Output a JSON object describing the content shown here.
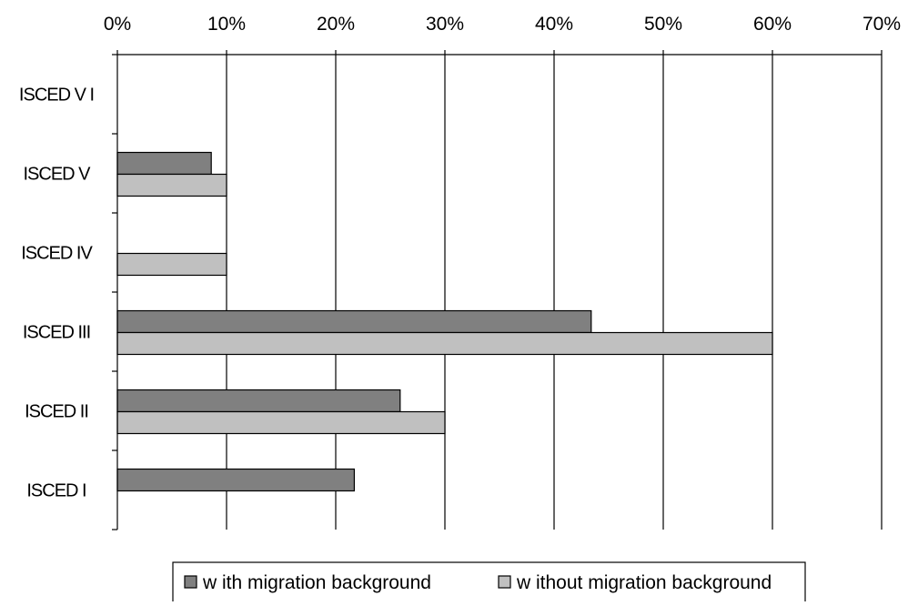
{
  "chart_data": {
    "type": "bar",
    "orientation": "horizontal",
    "categories": [
      "ISCED VI",
      "ISCED V",
      "ISCED IV",
      "ISCED III",
      "ISCED II",
      "ISCED I"
    ],
    "category_labels": [
      "ISCED V I",
      "ISCED V",
      "ISCED IV",
      "ISCED III",
      "ISCED II",
      "ISCED I"
    ],
    "series": [
      {
        "name": "w ith migration background",
        "color": "#808080",
        "values": [
          0,
          8.6,
          0,
          43.4,
          25.9,
          21.7
        ]
      },
      {
        "name": "w ithout migration background",
        "color": "#c0c0c0",
        "values": [
          0,
          10.0,
          10.0,
          60.0,
          30.0,
          0
        ]
      }
    ],
    "xlim": [
      0,
      70
    ],
    "x_ticks": [
      0,
      10,
      20,
      30,
      40,
      50,
      60,
      70
    ],
    "x_tick_labels": [
      "0%",
      "10%",
      "20%",
      "30%",
      "40%",
      "50%",
      "60%",
      "70%"
    ],
    "x_axis_position": "top",
    "grid": true,
    "legend_position": "bottom",
    "title": "",
    "xlabel": "",
    "ylabel": ""
  }
}
